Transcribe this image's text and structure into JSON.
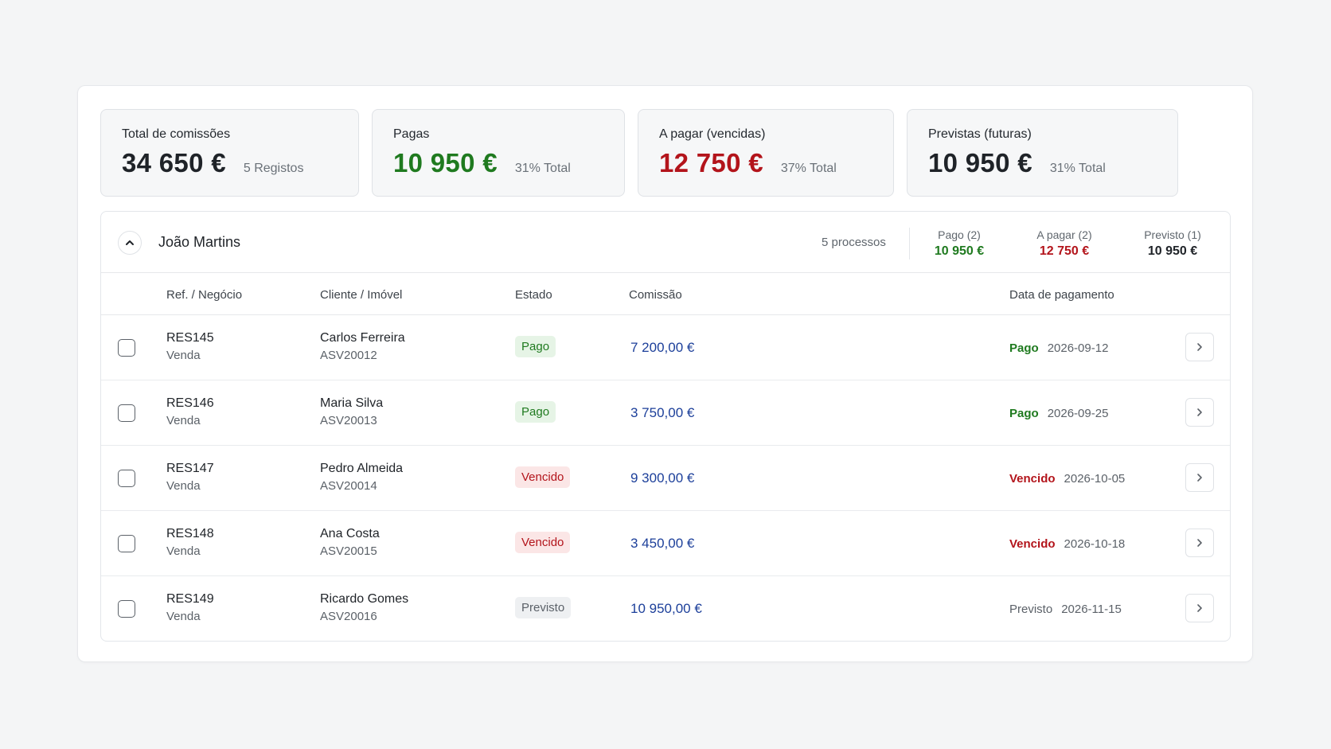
{
  "summary": [
    {
      "label": "Total de comissões",
      "value": "34 650 €",
      "sub": "5 Registos",
      "tone": "dark"
    },
    {
      "label": "Pagas",
      "value": "10 950 €",
      "sub": "31% Total",
      "tone": "green"
    },
    {
      "label": "A pagar (vencidas)",
      "value": "12 750 €",
      "sub": "37% Total",
      "tone": "red"
    },
    {
      "label": "Previstas (futuras)",
      "value": "10 950 €",
      "sub": "31% Total",
      "tone": "dark"
    }
  ],
  "group": {
    "name": "João Martins",
    "count": "5 processos",
    "stats": [
      {
        "label": "Pago (2)",
        "value": "10 950 €",
        "tone": "green"
      },
      {
        "label": "A pagar (2)",
        "value": "12 750 €",
        "tone": "red"
      },
      {
        "label": "Previsto (1)",
        "value": "10 950 €",
        "tone": "dark"
      }
    ]
  },
  "table": {
    "headers": {
      "ref": "Ref. / Negócio",
      "client": "Cliente / Imóvel",
      "status": "Estado",
      "commission": "Comissão",
      "payment_date": "Data de pagamento"
    },
    "rows": [
      {
        "ref": "RES145",
        "deal": "Venda",
        "client": "Carlos Ferreira",
        "property": "ASV20012",
        "status": "Pago",
        "kind": "pago",
        "amount": "7 200,00 €",
        "pay_status": "Pago",
        "pay_date": "2026-09-12"
      },
      {
        "ref": "RES146",
        "deal": "Venda",
        "client": "Maria Silva",
        "property": "ASV20013",
        "status": "Pago",
        "kind": "pago",
        "amount": "3 750,00 €",
        "pay_status": "Pago",
        "pay_date": "2026-09-25"
      },
      {
        "ref": "RES147",
        "deal": "Venda",
        "client": "Pedro Almeida",
        "property": "ASV20014",
        "status": "Vencido",
        "kind": "vencido",
        "amount": "9 300,00 €",
        "pay_status": "Vencido",
        "pay_date": "2026-10-05"
      },
      {
        "ref": "RES148",
        "deal": "Venda",
        "client": "Ana Costa",
        "property": "ASV20015",
        "status": "Vencido",
        "kind": "vencido",
        "amount": "3 450,00 €",
        "pay_status": "Vencido",
        "pay_date": "2026-10-18"
      },
      {
        "ref": "RES149",
        "deal": "Venda",
        "client": "Ricardo Gomes",
        "property": "ASV20016",
        "status": "Previsto",
        "kind": "previsto",
        "amount": "10 950,00 €",
        "pay_status": "Previsto",
        "pay_date": "2026-11-15"
      }
    ]
  },
  "icons": {
    "collapse": "chevron-up-icon",
    "row_open": "chevron-right-icon"
  },
  "colors": {
    "paid": "#1f7a1f",
    "overdue": "#b3141b",
    "amount": "#1c3f9a"
  }
}
